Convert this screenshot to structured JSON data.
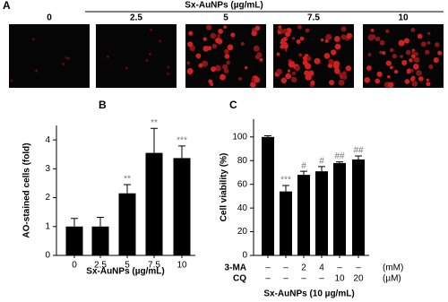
{
  "panel_a": {
    "label": "A",
    "title": "Sx-AuNPs (µg/mL)",
    "images": [
      "0",
      "2.5",
      "5",
      "7.5",
      "10"
    ]
  },
  "chart_data": [
    {
      "type": "bar",
      "label": "B",
      "ylabel": "AO-stained cells (fold)",
      "xlabel": "Sx-AuNPs (µg/mL)",
      "categories": [
        "0",
        "2.5",
        "5",
        "7.5",
        "10"
      ],
      "values": [
        1,
        1,
        2.15,
        3.55,
        3.37
      ],
      "errors": [
        0.28,
        0.32,
        0.3,
        0.85,
        0.42
      ],
      "annotations": [
        null,
        null,
        "**",
        "**",
        "***"
      ],
      "color": "#000000",
      "ylim": [
        0,
        4.5
      ],
      "yticks": [
        0,
        1,
        2,
        3,
        4
      ]
    },
    {
      "type": "bar",
      "label": "C",
      "ylabel": "Cell viability (%)",
      "xlabel": "Sx-AuNPs (10 µg/mL)",
      "values": [
        100,
        54,
        68,
        71,
        78,
        81
      ],
      "errors": [
        1,
        5,
        3,
        4,
        1,
        3
      ],
      "annotations": [
        null,
        "***",
        "#",
        "#",
        "##",
        "##"
      ],
      "color": "#000000",
      "ylim": [
        0,
        115
      ],
      "yticks": [
        0,
        20,
        40,
        60,
        80,
        100
      ],
      "treatments": [
        {
          "name": "3-MA",
          "doses": [
            "–",
            "–",
            "2",
            "4",
            "–",
            "–"
          ],
          "unit": "(mM)"
        },
        {
          "name": "CQ",
          "doses": [
            "–",
            "–",
            "–",
            "–",
            "10",
            "20"
          ],
          "unit": "(µM)"
        }
      ]
    }
  ]
}
